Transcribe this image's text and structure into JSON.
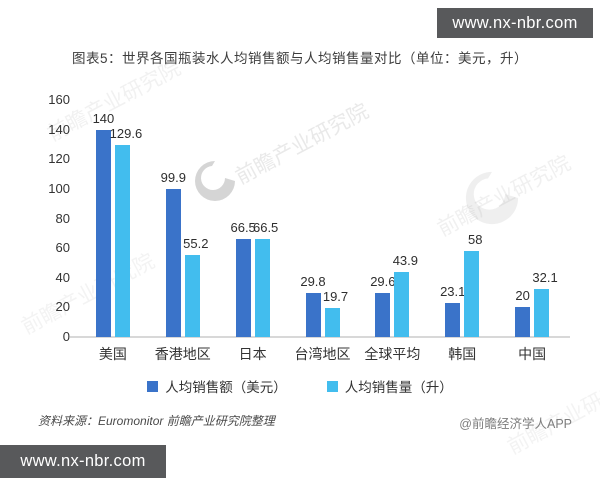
{
  "top_badge": {
    "text": "www.nx-nbr.com",
    "bg": "#58595b"
  },
  "title": "图表5：世界各国瓶装水人均销售额与人均销售量对比（单位：美元，升）",
  "chart_data": {
    "type": "bar",
    "categories": [
      "美国",
      "香港地区",
      "日本",
      "台湾地区",
      "全球平均",
      "韩国",
      "中国"
    ],
    "series": [
      {
        "name": "人均销售额（美元）",
        "color": "#3a73c9",
        "values": [
          140,
          99.9,
          66.5,
          29.8,
          29.6,
          23.1,
          20
        ]
      },
      {
        "name": "人均销售量（升）",
        "color": "#42bdee",
        "values": [
          129.6,
          55.2,
          66.5,
          19.7,
          43.9,
          58,
          32.1
        ]
      }
    ],
    "ylim": [
      0,
      160
    ],
    "ytick_step": 20,
    "grid": false,
    "legend_position": "bottom",
    "value_labels": true
  },
  "footer": {
    "source": "资料来源：Euromonitor  前瞻产业研究院整理",
    "credit": "@前瞻经济学人APP",
    "badge": "www.nx-nbr.com"
  },
  "watermark": {
    "text": "前瞻产业研究院"
  }
}
